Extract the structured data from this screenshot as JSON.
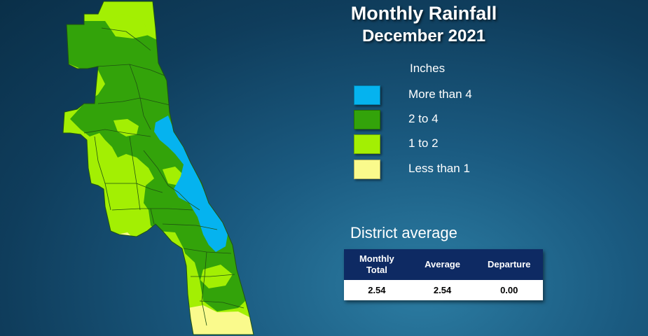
{
  "title": "Monthly Rainfall",
  "subtitle": "December 2021",
  "legend": {
    "title": "Inches",
    "items": [
      {
        "label": "More than 4",
        "color": "#05b3ef"
      },
      {
        "label": "2 to 4",
        "color": "#33a30a"
      },
      {
        "label": "1 to 2",
        "color": "#a3ef03"
      },
      {
        "label": "Less than 1",
        "color": "#fafa8c"
      }
    ]
  },
  "district_average": {
    "title": "District average",
    "columns": [
      "Monthly Total",
      "Average",
      "Departure"
    ],
    "values": [
      "2.54",
      "2.54",
      "0.00"
    ]
  },
  "map_colors": {
    "more_than_4": "#05b3ef",
    "two_to_four": "#33a30a",
    "one_to_two": "#a3ef03",
    "less_than_1": "#fafa8c",
    "county_line": "#1f5212"
  }
}
